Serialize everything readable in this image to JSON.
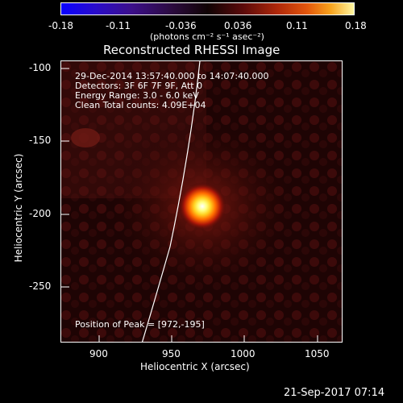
{
  "colorbar": {
    "tick_labels": [
      "-0.18",
      "-0.11",
      "-0.036",
      "0.036",
      "0.11",
      "0.18"
    ],
    "units": "(photons cm⁻² s⁻¹ asec⁻²)"
  },
  "title": "Reconstructed RHESSI Image",
  "annotations": {
    "line1": "29-Dec-2014 13:57:40.000 to 14:07:40.000",
    "line2": "Detectors: 3F 6F 7F 9F, Att 0",
    "line3": "Energy Range: 3.0 - 6.0 keV",
    "line4": "Clean    Total counts: 4.09E+04",
    "peak": "Position of Peak = [972,-195]"
  },
  "axes": {
    "xlabel": "Heliocentric X (arcsec)",
    "ylabel": "Heliocentric Y (arcsec)",
    "x_tick_labels": [
      "900",
      "950",
      "1000",
      "1050"
    ],
    "y_tick_labels": [
      "-100",
      "-150",
      "-200",
      "-250"
    ]
  },
  "footer_timestamp": "21-Sep-2017 07:14",
  "chart_data": {
    "type": "heatmap",
    "title": "Reconstructed RHESSI Image",
    "xlabel": "Heliocentric X (arcsec)",
    "ylabel": "Heliocentric Y (arcsec)",
    "xlim": [
      875,
      1068
    ],
    "ylim": [
      -288,
      -95
    ],
    "x_ticks": [
      900,
      950,
      1000,
      1050
    ],
    "y_ticks": [
      -100,
      -150,
      -200,
      -250
    ],
    "colorbar_range": [
      -0.18,
      0.18
    ],
    "colorbar_ticks": [
      -0.18,
      -0.11,
      -0.036,
      0.036,
      0.11,
      0.18
    ],
    "peak": [
      972,
      -195
    ],
    "colors": {
      "background": "#000000",
      "foreground": "#ffffff",
      "peak": "#ffff40"
    }
  }
}
